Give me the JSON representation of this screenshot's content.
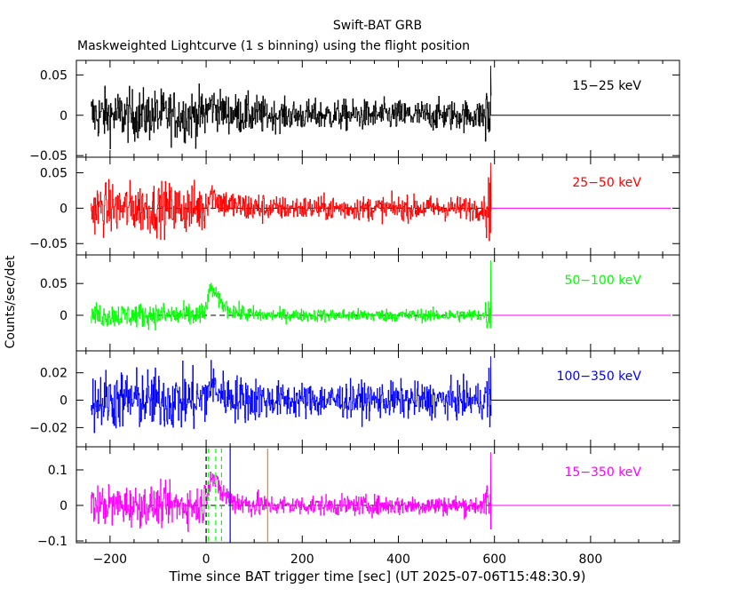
{
  "chart_data": {
    "type": "line",
    "title": "Swift-BAT GRB",
    "subtitle": "Maskweighted Lightcurve (1 s binning) using the flight position",
    "xlabel": "Time since BAT trigger time [sec] (UT 2025-07-06T15:48:30.9)",
    "ylabel": "Counts/sec/det",
    "xlim": [
      -270,
      985
    ],
    "x_ticks": [
      -200,
      0,
      200,
      400,
      600,
      800
    ],
    "data_range": [
      -240,
      592
    ],
    "grid": false,
    "panels": [
      {
        "name": "15-25 keV",
        "label": "15−25 keV",
        "color": "#000000",
        "ylim": [
          -0.052,
          0.068
        ],
        "y_ticks": [
          0.05,
          0,
          -0.05
        ],
        "y_tick_labels": [
          "0.05",
          "0",
          "−0.05"
        ],
        "noise_pre": 0.016,
        "noise_post": 0.0095,
        "peak": 0.013,
        "zero_line": "solid"
      },
      {
        "name": "25-50 keV",
        "label": "25−50 keV",
        "color": "#ff0000",
        "ylim": [
          -0.066,
          0.072
        ],
        "y_ticks": [
          0.05,
          0,
          -0.05
        ],
        "y_tick_labels": [
          "0.05",
          "0",
          "−0.05"
        ],
        "noise_pre": 0.018,
        "noise_post": 0.0085,
        "peak": 0.022,
        "zero_line": "dashed"
      },
      {
        "name": "50-100 keV",
        "label": "50−100 keV",
        "color": "#00ff00",
        "ylim": [
          -0.056,
          0.095
        ],
        "y_ticks": [
          0.05,
          0
        ],
        "y_tick_labels": [
          "0.05",
          "0"
        ],
        "noise_pre": 0.0095,
        "noise_post": 0.005,
        "peak": 0.045,
        "zero_line": "dashed"
      },
      {
        "name": "100-350 keV",
        "label": "100−350 keV",
        "color": "#0000ff",
        "ylim": [
          -0.034,
          0.036
        ],
        "y_ticks": [
          0.02,
          0,
          -0.02
        ],
        "y_tick_labels": [
          "0.02",
          "0",
          "−0.02"
        ],
        "noise_pre": 0.011,
        "noise_post": 0.0065,
        "peak": 0.012,
        "zero_line": "solid"
      },
      {
        "name": "15-350 keV",
        "label": "15−350 keV",
        "color": "#ff00ff",
        "ylim": [
          -0.105,
          0.165
        ],
        "y_ticks": [
          0.1,
          0,
          -0.1
        ],
        "y_tick_labels": [
          "0.1",
          "0",
          "−0.1"
        ],
        "noise_pre": 0.028,
        "noise_post": 0.014,
        "peak": 0.09,
        "zero_line": "dashed"
      }
    ],
    "markers": [
      {
        "name": "t-zero",
        "x": 0,
        "color": "#000000",
        "style": "dashed"
      },
      {
        "name": "T90 start",
        "x": 5,
        "color": "#00ff00",
        "style": "dashed"
      },
      {
        "name": "T90 end",
        "x": 32,
        "color": "#00ff00",
        "style": "dashed"
      },
      {
        "name": "T50",
        "x": 20,
        "color": "#00ff00",
        "style": "dashed"
      },
      {
        "name": "T100 end",
        "x": 50,
        "color": "#0000ff",
        "style": "solid"
      },
      {
        "name": "Tmax",
        "x": 128,
        "color": "#ff7f00",
        "style": "solid"
      }
    ]
  }
}
